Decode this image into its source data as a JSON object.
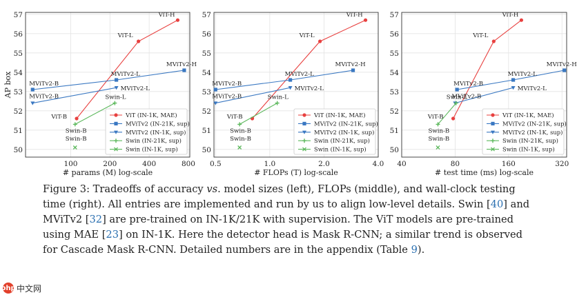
{
  "chart_data": [
    {
      "type": "line",
      "xlabel": "# params (M) log-scale",
      "ylabel": "AP box",
      "xscale": "log",
      "xlim": [
        45,
        820
      ],
      "ylim": [
        49.6,
        57.1
      ],
      "xticks": [
        100,
        200,
        400,
        800
      ],
      "yticks": [
        50,
        51,
        52,
        53,
        54,
        55,
        56,
        57
      ],
      "legend": "bottom-right",
      "series": [
        {
          "name": "ViT (IN-1K, MAE)",
          "color": "#e8403f",
          "marker": "circle",
          "points": [
            {
              "x": 111,
              "y": 51.6,
              "label": "ViT-B"
            },
            {
              "x": 331,
              "y": 55.6,
              "label": "ViT-L"
            },
            {
              "x": 662,
              "y": 56.7,
              "label": "ViT-H"
            }
          ]
        },
        {
          "name": "MViTv2 (IN-21K, sup)",
          "color": "#3a78c2",
          "marker": "square",
          "points": [
            {
              "x": 51,
              "y": 53.1,
              "label": "MViTv2-B"
            },
            {
              "x": 224,
              "y": 53.6,
              "label": "MViTv2-L"
            },
            {
              "x": 743,
              "y": 54.1,
              "label": "MViTv2-H"
            }
          ]
        },
        {
          "name": "MViTv2 (IN-1K, sup)",
          "color": "#3a78c2",
          "marker": "triangle",
          "points": [
            {
              "x": 51,
              "y": 52.4,
              "label": "MViTv2-B"
            },
            {
              "x": 224,
              "y": 53.2,
              "label": "MViTv2-L"
            }
          ]
        },
        {
          "name": "Swin (IN-21K, sup)",
          "color": "#5cb85c",
          "marker": "plus",
          "points": [
            {
              "x": 108,
              "y": 51.3,
              "label": "Swin-B"
            },
            {
              "x": 218,
              "y": 52.4,
              "label": "Swin-L"
            }
          ]
        },
        {
          "name": "Swin (IN-1K, sup)",
          "color": "#5cb85c",
          "marker": "x",
          "points": [
            {
              "x": 108,
              "y": 50.1,
              "label": "Swin-B"
            }
          ]
        }
      ]
    },
    {
      "type": "line",
      "xlabel": "# FLOPs (T) log-scale",
      "xscale": "log",
      "xlim": [
        0.49,
        4.0
      ],
      "ylim": [
        49.6,
        57.1
      ],
      "xticks": [
        0.5,
        1.0,
        2.0,
        4.0
      ],
      "xtick_labels": [
        "0.5",
        "1.0",
        "2.0",
        "4.0"
      ],
      "yticks": [
        50,
        51,
        52,
        53,
        54,
        55,
        56,
        57
      ],
      "legend": "bottom-right",
      "series": [
        {
          "name": "ViT (IN-1K, MAE)",
          "color": "#e8403f",
          "marker": "circle",
          "points": [
            {
              "x": 0.8,
              "y": 51.6,
              "label": "ViT-B"
            },
            {
              "x": 1.9,
              "y": 55.6,
              "label": "ViT-L"
            },
            {
              "x": 3.4,
              "y": 56.7,
              "label": "ViT-H"
            }
          ]
        },
        {
          "name": "MViTv2 (IN-21K, sup)",
          "color": "#3a78c2",
          "marker": "square",
          "points": [
            {
              "x": 0.5,
              "y": 53.1,
              "label": "MViTv2-B"
            },
            {
              "x": 1.3,
              "y": 53.6,
              "label": "MViTv2-L"
            },
            {
              "x": 2.9,
              "y": 54.1,
              "label": "MViTv2-H"
            }
          ]
        },
        {
          "name": "MViTv2 (IN-1K, sup)",
          "color": "#3a78c2",
          "marker": "triangle",
          "points": [
            {
              "x": 0.5,
              "y": 52.4,
              "label": "MViTv2-B"
            },
            {
              "x": 1.3,
              "y": 53.2,
              "label": "MViTv2-L"
            }
          ]
        },
        {
          "name": "Swin (IN-21K, sup)",
          "color": "#5cb85c",
          "marker": "plus",
          "points": [
            {
              "x": 0.68,
              "y": 51.3,
              "label": "Swin-B"
            },
            {
              "x": 1.1,
              "y": 52.4,
              "label": "Swin-L"
            }
          ]
        },
        {
          "name": "Swin (IN-1K, sup)",
          "color": "#5cb85c",
          "marker": "x",
          "points": [
            {
              "x": 0.68,
              "y": 50.1,
              "label": "Swin-B"
            }
          ]
        }
      ]
    },
    {
      "type": "line",
      "xlabel": "# test time (ms) log-scale",
      "xscale": "log",
      "xlim": [
        40,
        340
      ],
      "ylim": [
        49.6,
        57.1
      ],
      "xticks": [
        40,
        80,
        160,
        320
      ],
      "yticks": [
        50,
        51,
        52,
        53,
        54,
        55,
        56,
        57
      ],
      "legend": "bottom-right",
      "series": [
        {
          "name": "ViT (IN-1K, MAE)",
          "color": "#e8403f",
          "marker": "circle",
          "points": [
            {
              "x": 78,
              "y": 51.6,
              "label": "ViT-B"
            },
            {
              "x": 132,
              "y": 55.6,
              "label": "ViT-L"
            },
            {
              "x": 189,
              "y": 56.7,
              "label": "ViT-H"
            }
          ]
        },
        {
          "name": "MViTv2 (IN-21K, sup)",
          "color": "#3a78c2",
          "marker": "square",
          "points": [
            {
              "x": 82,
              "y": 53.1,
              "label": "MViTv2-B"
            },
            {
              "x": 170,
              "y": 53.6,
              "label": "MViTv2-L"
            },
            {
              "x": 330,
              "y": 54.1,
              "label": "MViTv2-H"
            }
          ]
        },
        {
          "name": "MViTv2 (IN-1K, sup)",
          "color": "#3a78c2",
          "marker": "triangle",
          "points": [
            {
              "x": 80,
              "y": 52.4,
              "label": "MViTv2-B"
            },
            {
              "x": 170,
              "y": 53.2,
              "label": "MViTv2-L"
            }
          ]
        },
        {
          "name": "Swin (IN-21K, sup)",
          "color": "#5cb85c",
          "marker": "plus",
          "points": [
            {
              "x": 64,
              "y": 51.3,
              "label": "Swin-B"
            },
            {
              "x": 81,
              "y": 52.4,
              "label": "Swin-L"
            }
          ]
        },
        {
          "name": "Swin (IN-1K, sup)",
          "color": "#5cb85c",
          "marker": "x",
          "points": [
            {
              "x": 64,
              "y": 50.1,
              "label": "Swin-B"
            }
          ]
        }
      ]
    }
  ],
  "caption": {
    "label": "Figure 3: ",
    "segments": [
      {
        "text": "Tradeoffs of accuracy ",
        "ref": false
      },
      {
        "text": "vs",
        "ref": false,
        "italic": true
      },
      {
        "text": ". model sizes (left), FLOPs (middle), and wall-clock testing time (right). All entries are implemented and run by us to align low-level details. Swin [",
        "ref": false
      },
      {
        "text": "40",
        "ref": true
      },
      {
        "text": "] and MViTv2 [",
        "ref": false
      },
      {
        "text": "32",
        "ref": true
      },
      {
        "text": "] are pre-trained on IN-1K/21K with supervision. The ViT models are pre-trained using MAE [",
        "ref": false
      },
      {
        "text": "23",
        "ref": true
      },
      {
        "text": "] on IN-1K. Here the detector head is Mask R-CNN; a similar trend is observed for Cascade Mask R-CNN. Detailed numbers are in the appendix (Table ",
        "ref": false
      },
      {
        "text": "9",
        "ref": true
      },
      {
        "text": ").",
        "ref": false
      }
    ]
  },
  "watermark": {
    "logo": "php",
    "text": "中文网"
  }
}
